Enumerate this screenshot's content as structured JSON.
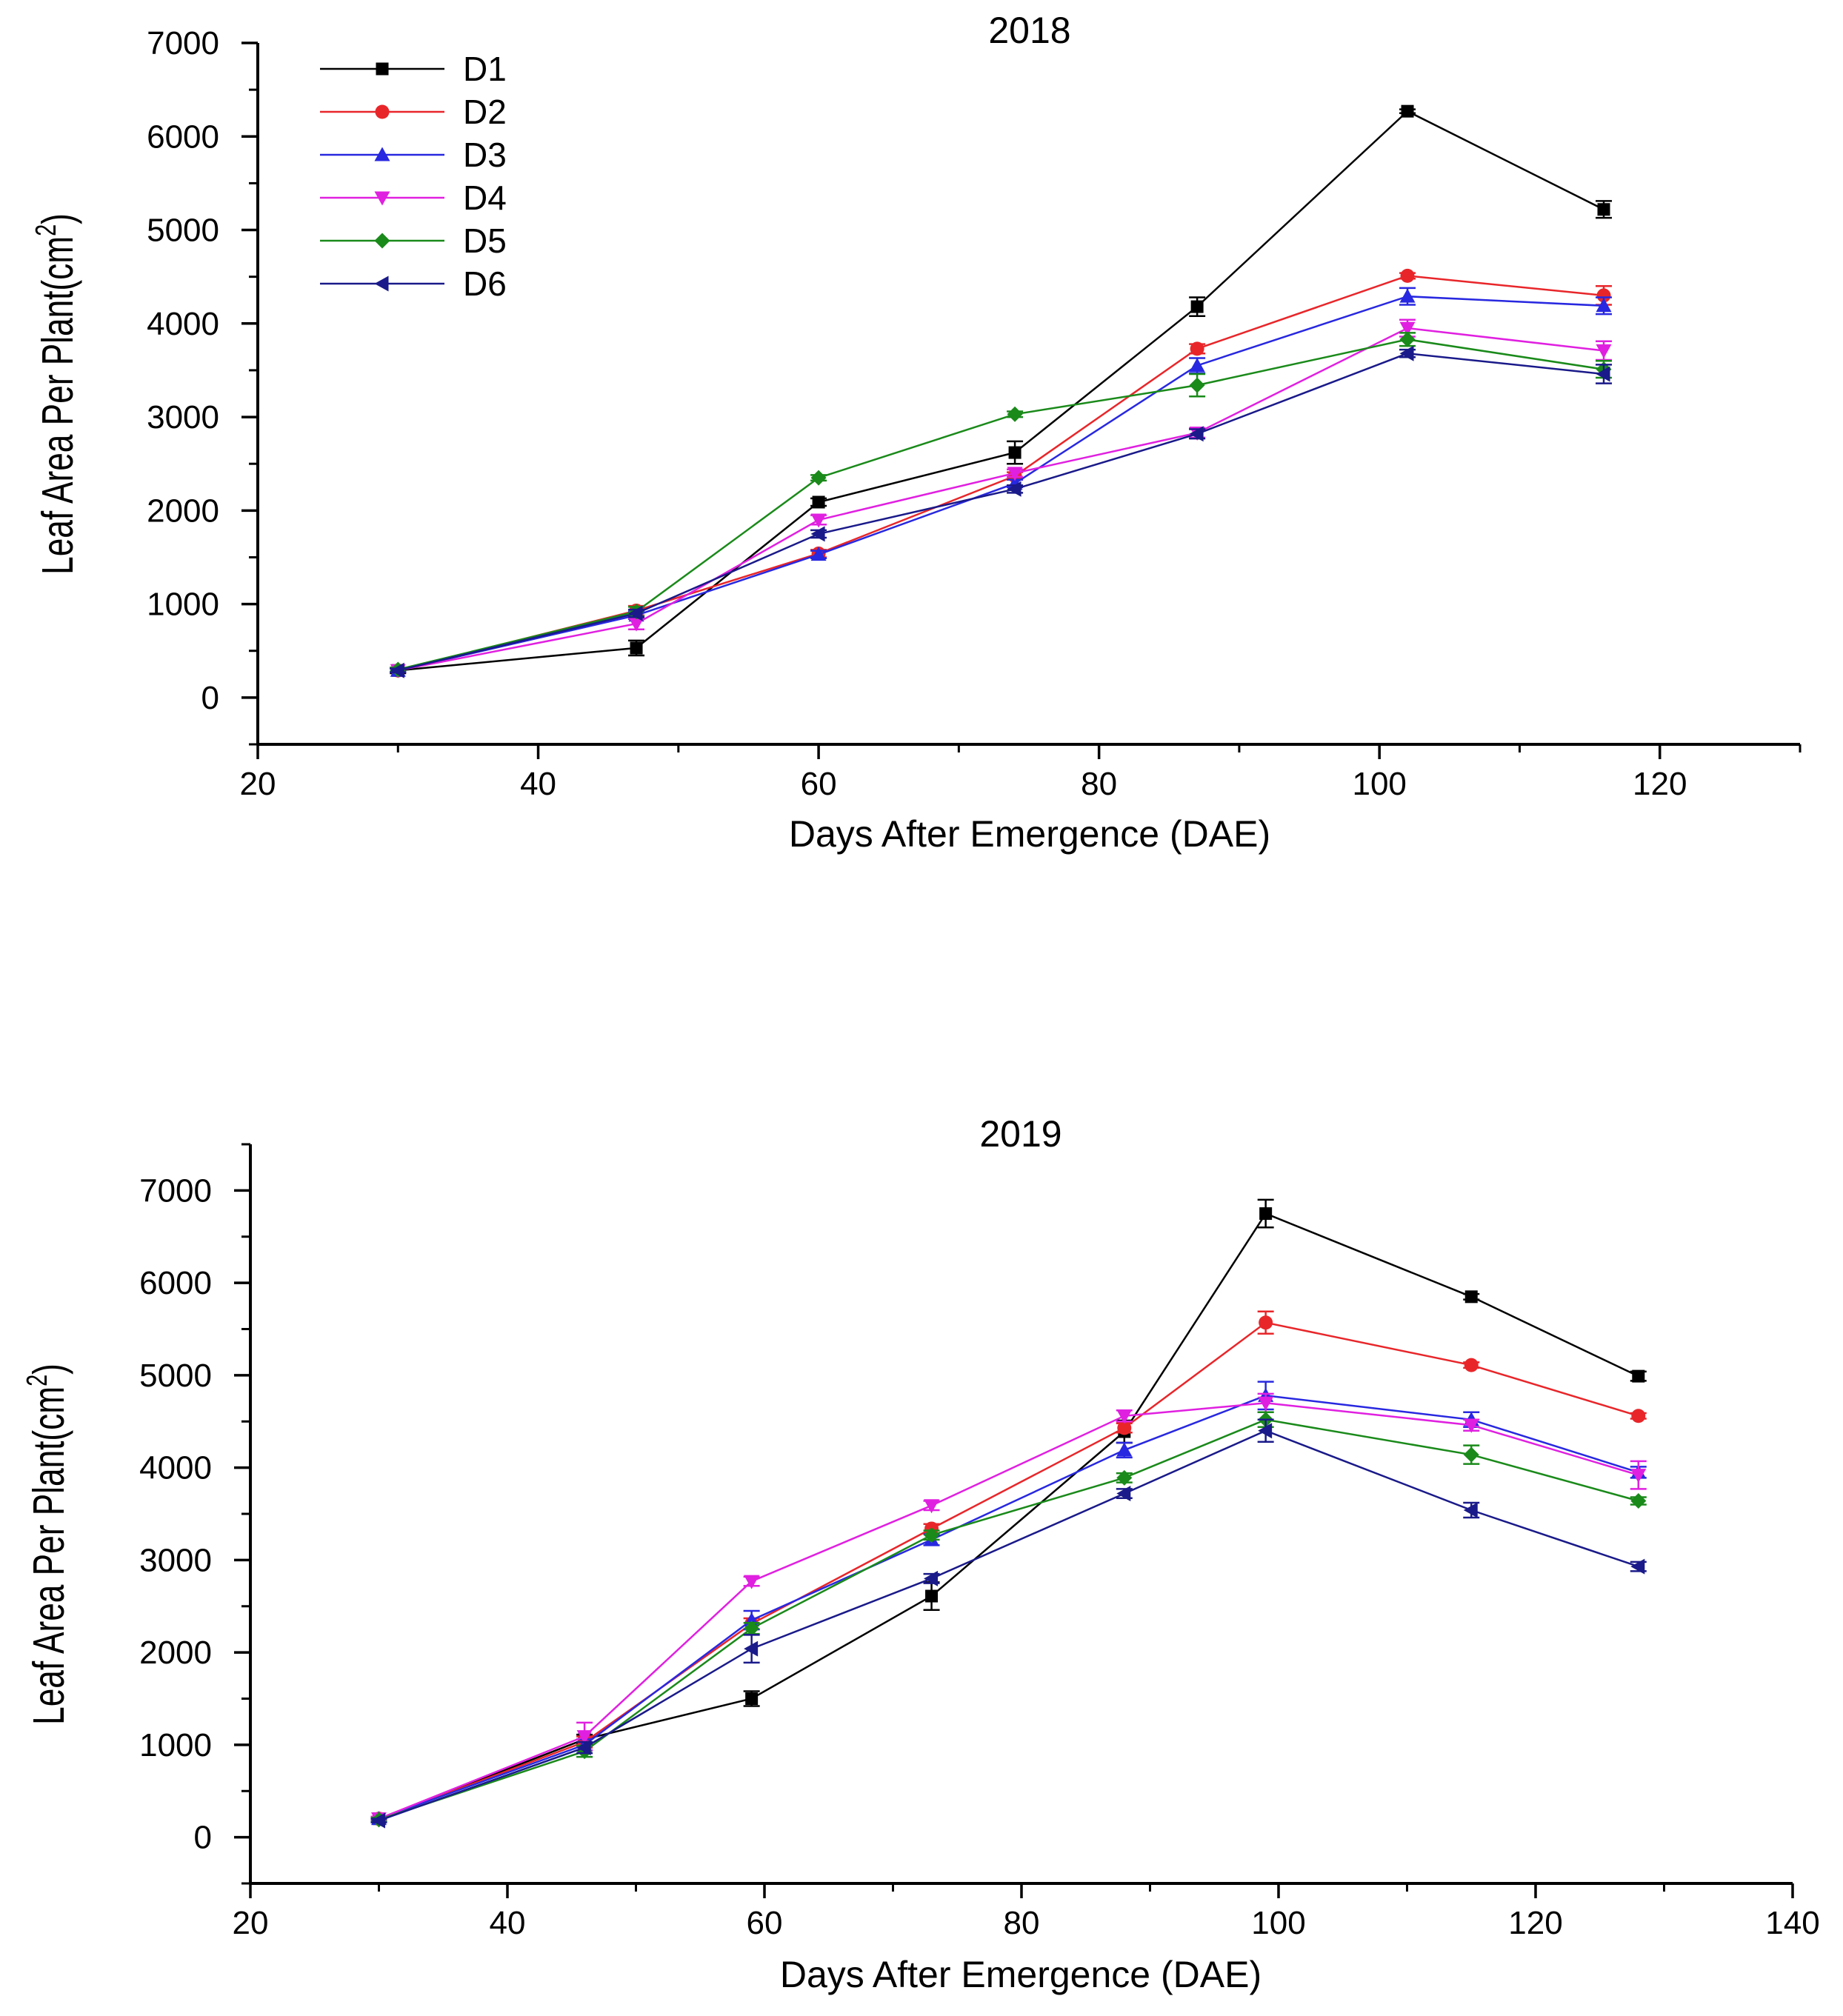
{
  "chart_data": [
    {
      "type": "line",
      "title": "2018",
      "xlabel": "Days After Emergence (DAE)",
      "ylabel": "Leaf Area Per Plant(cm",
      "ylabel_sup": "2",
      "ylabel_close": ")",
      "xlim": [
        20,
        130
      ],
      "ylim": [
        -500,
        7000
      ],
      "xticks": [
        20,
        40,
        60,
        80,
        100,
        120
      ],
      "yticks": [
        0,
        1000,
        2000,
        3000,
        4000,
        5000,
        6000,
        7000
      ],
      "legend": {
        "placement": "top-left"
      },
      "series": [
        {
          "name": "D1",
          "color": "#000000",
          "marker": "square",
          "x": [
            30,
            47,
            60,
            74,
            87,
            102,
            116
          ],
          "y": [
            290,
            530,
            2090,
            2620,
            4180,
            6270,
            5220
          ],
          "err": [
            30,
            80,
            40,
            120,
            100,
            20,
            90
          ]
        },
        {
          "name": "D2",
          "color": "#e8262a",
          "marker": "circle",
          "x": [
            30,
            47,
            60,
            74,
            87,
            102,
            116
          ],
          "y": [
            290,
            930,
            1540,
            2370,
            3730,
            4510,
            4300
          ],
          "err": [
            20,
            50,
            40,
            40,
            50,
            30,
            100
          ]
        },
        {
          "name": "D3",
          "color": "#2828e0",
          "marker": "triangle-up",
          "x": [
            30,
            47,
            60,
            74,
            87,
            102,
            116
          ],
          "y": [
            290,
            880,
            1530,
            2290,
            3550,
            4290,
            4190
          ],
          "err": [
            20,
            40,
            40,
            40,
            80,
            90,
            90
          ]
        },
        {
          "name": "D4",
          "color": "#e020e0",
          "marker": "triangle-down",
          "x": [
            30,
            47,
            60,
            74,
            87,
            102,
            116
          ],
          "y": [
            290,
            790,
            1900,
            2400,
            2830,
            3950,
            3710
          ],
          "err": [
            20,
            60,
            50,
            40,
            50,
            90,
            100
          ]
        },
        {
          "name": "D5",
          "color": "#1a8a1a",
          "marker": "diamond",
          "x": [
            30,
            47,
            60,
            74,
            87,
            102,
            116
          ],
          "y": [
            300,
            920,
            2350,
            3030,
            3340,
            3830,
            3510
          ],
          "err": [
            20,
            50,
            30,
            30,
            120,
            70,
            90
          ]
        },
        {
          "name": "D6",
          "color": "#1a1a8a",
          "marker": "triangle-left",
          "x": [
            30,
            47,
            60,
            74,
            87,
            102,
            116
          ],
          "y": [
            290,
            900,
            1750,
            2230,
            2820,
            3680,
            3460
          ],
          "err": [
            20,
            40,
            40,
            40,
            50,
            40,
            100
          ]
        }
      ]
    },
    {
      "type": "line",
      "title": "2019",
      "xlabel": "Days After Emergence (DAE)",
      "ylabel": "Leaf Area Per Plant(cm",
      "ylabel_sup": "2",
      "ylabel_close": ")",
      "xlim": [
        20,
        140
      ],
      "ylim": [
        -500,
        7500
      ],
      "xticks": [
        20,
        40,
        60,
        80,
        100,
        120,
        140
      ],
      "yticks": [
        0,
        1000,
        2000,
        3000,
        4000,
        5000,
        6000,
        7000
      ],
      "series": [
        {
          "name": "D1",
          "color": "#000000",
          "marker": "square",
          "x": [
            30,
            46,
            59,
            73,
            88,
            99,
            115,
            128
          ],
          "y": [
            200,
            1060,
            1500,
            2610,
            4390,
            6750,
            5850,
            4990
          ],
          "err": [
            20,
            50,
            80,
            150,
            120,
            150,
            30,
            50
          ]
        },
        {
          "name": "D2",
          "color": "#e8262a",
          "marker": "circle",
          "x": [
            30,
            46,
            59,
            73,
            88,
            99,
            115,
            128
          ],
          "y": [
            200,
            1030,
            2310,
            3340,
            4430,
            5570,
            5110,
            4560
          ],
          "err": [
            20,
            60,
            60,
            50,
            50,
            120,
            30,
            30
          ]
        },
        {
          "name": "D3",
          "color": "#2828e0",
          "marker": "triangle-up",
          "x": [
            30,
            46,
            59,
            73,
            88,
            99,
            115,
            128
          ],
          "y": [
            200,
            1000,
            2350,
            3220,
            4190,
            4780,
            4520,
            3950
          ],
          "err": [
            20,
            60,
            100,
            60,
            80,
            150,
            80,
            60
          ]
        },
        {
          "name": "D4",
          "color": "#e020e0",
          "marker": "triangle-down",
          "x": [
            30,
            46,
            59,
            73,
            88,
            99,
            115,
            128
          ],
          "y": [
            200,
            1090,
            2770,
            3590,
            4560,
            4700,
            4460,
            3920
          ],
          "err": [
            20,
            150,
            50,
            50,
            60,
            100,
            60,
            150
          ]
        },
        {
          "name": "D5",
          "color": "#1a8a1a",
          "marker": "diamond",
          "x": [
            30,
            46,
            59,
            73,
            88,
            99,
            115,
            128
          ],
          "y": [
            190,
            930,
            2260,
            3270,
            3890,
            4520,
            4140,
            3640
          ],
          "err": [
            20,
            60,
            60,
            50,
            50,
            80,
            100,
            40
          ]
        },
        {
          "name": "D6",
          "color": "#1a1a8a",
          "marker": "triangle-left",
          "x": [
            30,
            46,
            59,
            73,
            88,
            99,
            115,
            128
          ],
          "y": [
            180,
            970,
            2040,
            2800,
            3720,
            4400,
            3540,
            2930
          ],
          "err": [
            20,
            60,
            150,
            50,
            50,
            120,
            80,
            50
          ]
        }
      ]
    }
  ]
}
